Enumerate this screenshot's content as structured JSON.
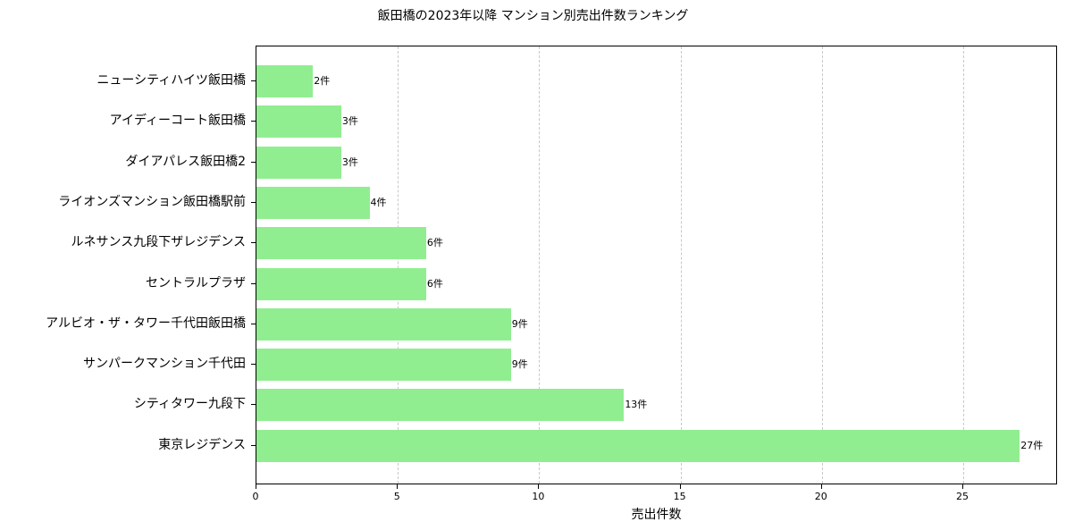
{
  "chart_data": {
    "type": "bar",
    "orientation": "horizontal",
    "title": "飯田橋の2023年以降 マンション別売出件数ランキング",
    "xlabel": "売出件数",
    "ylabel": "",
    "xlim": [
      0,
      28.35
    ],
    "xticks": [
      0,
      5,
      10,
      15,
      20,
      25
    ],
    "grid": {
      "x": true,
      "y": false,
      "style": "dashed"
    },
    "bar_color": "#90ee90",
    "categories": [
      "ニューシティハイツ飯田橋",
      "アイディーコート飯田橋",
      "ダイアパレス飯田橋2",
      "ライオンズマンション飯田橋駅前",
      "ルネサンス九段下ザレジデンス",
      "セントラルプラザ",
      "アルビオ・ザ・タワー千代田飯田橋",
      "サンパークマンション千代田",
      "シティタワー九段下",
      "東京レジデンス"
    ],
    "values": [
      2,
      3,
      3,
      4,
      6,
      6,
      9,
      9,
      13,
      27
    ],
    "data_labels": [
      "2件",
      "3件",
      "3件",
      "4件",
      "6件",
      "6件",
      "9件",
      "9件",
      "13件",
      "27件"
    ]
  }
}
